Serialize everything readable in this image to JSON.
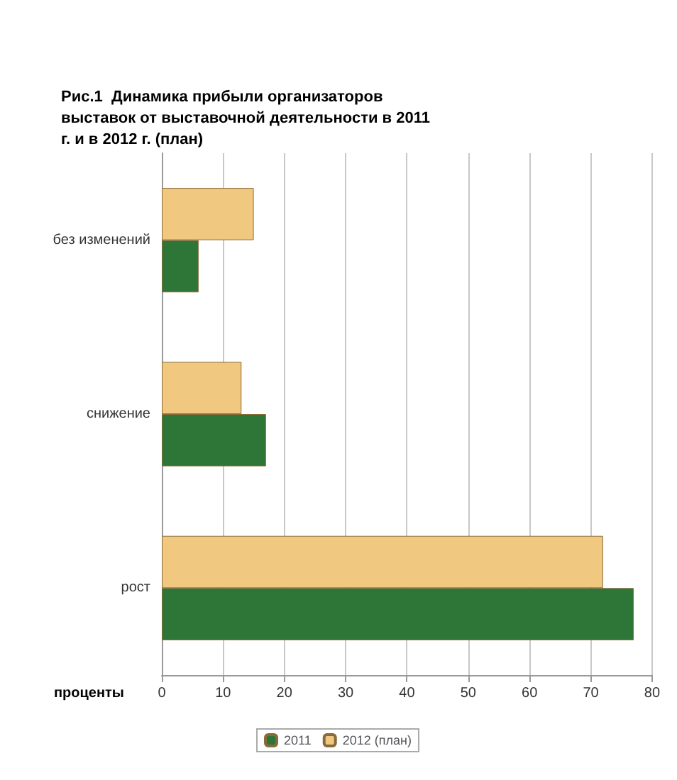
{
  "chart_data": {
    "type": "bar",
    "orientation": "horizontal",
    "title": "Рис.1  Динамика прибыли организаторов выставок от выставочной деятельности в 2011 г. и в 2012 г. (план)",
    "xlabel": "проценты",
    "categories": [
      "без изменений",
      "снижение",
      "рост"
    ],
    "series": [
      {
        "name": "2011",
        "color": "#2e7538",
        "values": [
          6,
          17,
          77
        ]
      },
      {
        "name": "2012 (план)",
        "color": "#f0c880",
        "values": [
          15,
          13,
          72
        ]
      }
    ],
    "xlim": [
      0,
      80
    ],
    "xticks": [
      0,
      10,
      20,
      30,
      40,
      50,
      60,
      70,
      80
    ],
    "grid": "x",
    "legend": "bottom"
  }
}
